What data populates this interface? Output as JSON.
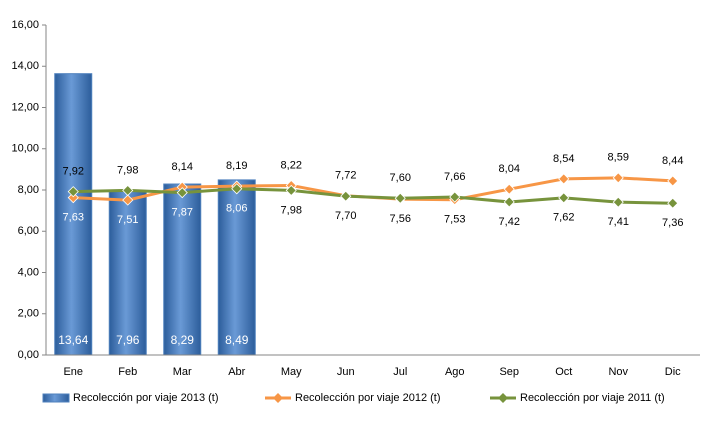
{
  "chart_data": {
    "type": "bar",
    "categories": [
      "Ene",
      "Feb",
      "Mar",
      "Abr",
      "May",
      "Jun",
      "Jul",
      "Ago",
      "Sep",
      "Oct",
      "Nov",
      "Dic"
    ],
    "ylim": [
      0,
      16
    ],
    "yticks": [
      {
        "value": 0,
        "label": "0,00"
      },
      {
        "value": 2,
        "label": "2,00"
      },
      {
        "value": 4,
        "label": "4,00"
      },
      {
        "value": 6,
        "label": "6,00"
      },
      {
        "value": 8,
        "label": "8,00"
      },
      {
        "value": 10,
        "label": "10,00"
      },
      {
        "value": 12,
        "label": "12,00"
      },
      {
        "value": 14,
        "label": "14,00"
      },
      {
        "value": 16,
        "label": "16,00"
      }
    ],
    "grid": false,
    "legend": "bottom",
    "series": [
      {
        "name": "Recolección por viaje 2013 (t)",
        "type": "bar",
        "color": "#4f81bd",
        "values": [
          13.64,
          7.96,
          8.29,
          8.49,
          null,
          null,
          null,
          null,
          null,
          null,
          null,
          null
        ],
        "value_labels": [
          "13,64",
          "7,96",
          "8,29",
          "8,49",
          null,
          null,
          null,
          null,
          null,
          null,
          null,
          null
        ]
      },
      {
        "name": "Recolección por viaje 2012 (t)",
        "type": "line",
        "color": "#f79646",
        "values": [
          7.63,
          7.51,
          8.14,
          8.19,
          8.22,
          7.72,
          7.56,
          7.53,
          8.04,
          8.54,
          8.59,
          8.44
        ],
        "value_labels": [
          "7,63",
          "7,51",
          "8,14",
          "8,19",
          "8,22",
          "7,72",
          "7,56",
          "7,53",
          "8,04",
          "8,54",
          "8,59",
          "8,44"
        ]
      },
      {
        "name": "Recolección por viaje 2011 (t)",
        "type": "line",
        "color": "#77933c",
        "values": [
          7.92,
          7.98,
          7.87,
          8.06,
          7.98,
          7.7,
          7.6,
          7.66,
          7.42,
          7.62,
          7.41,
          7.36
        ],
        "value_labels": [
          "7,92",
          "7,98",
          "7,87",
          "8,06",
          "7,98",
          "7,70",
          "7,60",
          "7,66",
          "7,42",
          "7,62",
          "7,41",
          "7,36"
        ]
      }
    ]
  }
}
